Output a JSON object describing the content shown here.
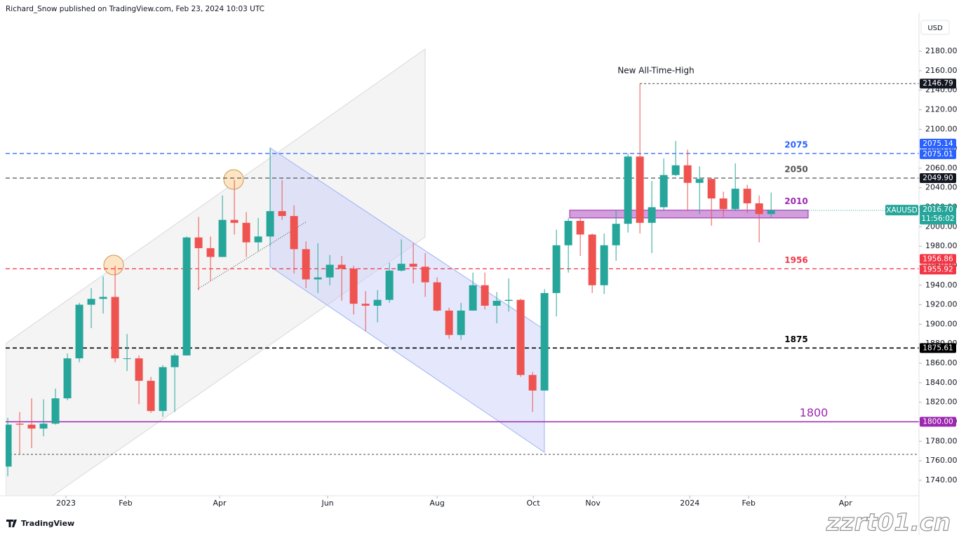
{
  "chart_data": {
    "type": "candlestick",
    "header": "Richard_Snow published on TradingView.com, Feb 23, 2024 10:03 UTC",
    "currency": "USD",
    "symbol": "XAUUSD",
    "last_price_label": "2016.70",
    "countdown": "11:56:02",
    "brand": "TradingView",
    "watermark": "zzrt01.cn",
    "annotation": "New All-Time-High",
    "up_color": "#26a69a",
    "down_color": "#ef5350",
    "open": [
      1754,
      1798,
      1797,
      1793,
      1798,
      1824,
      1865,
      1920,
      1926,
      1928,
      1865,
      1865,
      1842,
      1811,
      1856,
      1868,
      1989,
      1978,
      1969,
      2007,
      2004,
      1984,
      1990,
      2016,
      2011,
      1977,
      1946,
      1948,
      1961,
      1957,
      1921,
      1919,
      1925,
      1955,
      1962,
      1959,
      1943,
      1914,
      1889,
      1914,
      1940,
      1919,
      1924,
      1925,
      1848,
      1832,
      1932,
      1981,
      2006,
      1992,
      1940,
      1981,
      2003,
      2072,
      2004,
      2020,
      2053,
      2063,
      2045,
      2049,
      2029,
      2018,
      2039,
      2024,
      2013
    ],
    "high": [
      1804,
      1810,
      1824,
      1823,
      1834,
      1870,
      1922,
      1937,
      1949,
      1960,
      1890,
      1868,
      1846,
      1858,
      1870,
      1990,
      2010,
      1990,
      2032,
      2048,
      2015,
      2009,
      2081,
      2048,
      2022,
      1985,
      1983,
      1971,
      1970,
      1960,
      1934,
      1935,
      1963,
      1987,
      1983,
      1973,
      1948,
      1917,
      1922,
      1953,
      1953,
      1933,
      1947,
      1926,
      1851,
      1936,
      1997,
      2009,
      2009,
      1993,
      1993,
      2017,
      2075,
      2146.79,
      2047,
      2070,
      2088,
      2079,
      2062,
      2050,
      2036,
      2065,
      2043,
      2032,
      2035
    ],
    "low": [
      1744,
      1767,
      1773,
      1785,
      1797,
      1822,
      1861,
      1896,
      1911,
      1861,
      1852,
      1818,
      1809,
      1805,
      1810,
      1868,
      1935,
      1944,
      1969,
      1992,
      1969,
      1975,
      1980,
      2007,
      1952,
      1937,
      1932,
      1940,
      1924,
      1910,
      1893,
      1902,
      1922,
      1954,
      1942,
      1928,
      1913,
      1885,
      1884,
      1914,
      1915,
      1901,
      1913,
      1846,
      1810,
      1832,
      1908,
      1953,
      1970,
      1932,
      1931,
      1965,
      1994,
      1993,
      1973,
      2016,
      2052,
      2016,
      2013,
      2001,
      2010,
      2016,
      2014,
      1984,
      2010
    ],
    "close": [
      1797,
      1797,
      1793,
      1798,
      1824,
      1865,
      1920,
      1926,
      1928,
      1865,
      1865,
      1842,
      1811,
      1856,
      1868,
      1989,
      1978,
      1969,
      2007,
      2004,
      1984,
      1990,
      2016,
      2011,
      1977,
      1946,
      1948,
      1961,
      1957,
      1921,
      1919,
      1925,
      1955,
      1962,
      1959,
      1943,
      1914,
      1889,
      1914,
      1940,
      1919,
      1924,
      1925,
      1848,
      1832,
      1932,
      1981,
      2006,
      1992,
      1940,
      1981,
      2003,
      2072,
      2004,
      2020,
      2053,
      2063,
      2045,
      2049,
      2029,
      2018,
      2039,
      2024,
      2013,
      2016.7
    ],
    "xlim": [
      -0.18,
      76.4
    ],
    "xticks": [
      {
        "value": 4.88,
        "label": "2023"
      },
      {
        "value": 9.88,
        "label": "Feb"
      },
      {
        "value": 17.76,
        "label": "Apr"
      },
      {
        "value": 26.82,
        "label": "Jun"
      },
      {
        "value": 36,
        "label": "Aug"
      },
      {
        "value": 44.06,
        "label": "Oct"
      },
      {
        "value": 49.06,
        "label": "Nov"
      },
      {
        "value": 57.18,
        "label": "2024"
      },
      {
        "value": 62.12,
        "label": "Feb"
      },
      {
        "value": 70.24,
        "label": "Apr"
      }
    ],
    "ylim": [
      1724.1,
      2219.6
    ],
    "yticks": [
      {
        "value": 1740,
        "label": "1740.00"
      },
      {
        "value": 1760,
        "label": "1760.00"
      },
      {
        "value": 1780,
        "label": "1780.00"
      },
      {
        "value": 1800,
        "label": "1800.00"
      },
      {
        "value": 1820,
        "label": "1820.00"
      },
      {
        "value": 1840,
        "label": "1840.00"
      },
      {
        "value": 1860,
        "label": "1860.00"
      },
      {
        "value": 1880,
        "label": "1880.00"
      },
      {
        "value": 1900,
        "label": "1900.00"
      },
      {
        "value": 1920,
        "label": "1920.00"
      },
      {
        "value": 1940,
        "label": "1940.00"
      },
      {
        "value": 1960,
        "label": "1960.00"
      },
      {
        "value": 1980,
        "label": "1980.00"
      },
      {
        "value": 2000,
        "label": "2000.00"
      },
      {
        "value": 2020,
        "label": "2020.00"
      },
      {
        "value": 2040,
        "label": "2040.00"
      },
      {
        "value": 2060,
        "label": "2060.00"
      },
      {
        "value": 2080,
        "label": "2080.00"
      },
      {
        "value": 2100,
        "label": "2100.00"
      },
      {
        "value": 2120,
        "label": "2120.00"
      },
      {
        "value": 2140,
        "label": "2140.00"
      },
      {
        "value": 2160,
        "label": "2160.00"
      },
      {
        "value": 2180,
        "label": "2180.00"
      }
    ],
    "grid": false,
    "ath_tag": 2146.79,
    "zone": {
      "label": "2010",
      "low": 2009,
      "high": 2017,
      "color": "#9c27b0"
    },
    "levels": [
      {
        "label": "2075",
        "color": "#2962ff",
        "line_style": "dashed",
        "tags": [
          2075.14,
          2075.01
        ]
      },
      {
        "label": "2050",
        "color": "#555555",
        "line_style": "dashed",
        "tags": [
          {
            "value": 2049.9,
            "label": "2049.90"
          }
        ]
      },
      {
        "label": "1956",
        "color": "#f23645",
        "line_style": "dashed",
        "tags": [
          1956.86,
          1955.92
        ]
      },
      {
        "label": "1875",
        "color": "#000000",
        "line_style": "dashed",
        "tags": [
          1875.61
        ]
      },
      {
        "label": "1800",
        "color": "#9c27b0",
        "line_style": "solid",
        "tags": [
          {
            "value": 1800,
            "label": "1800.00"
          }
        ]
      }
    ]
  }
}
